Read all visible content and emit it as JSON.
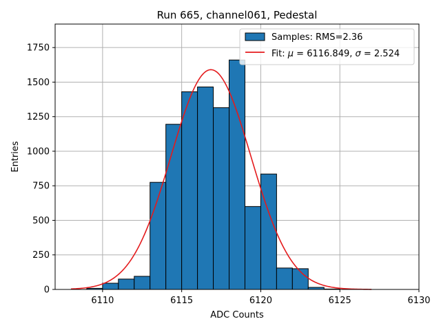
{
  "chart_data": {
    "type": "bar",
    "title": "Run 665, channel061, Pedestal",
    "xlabel": "ADC Counts",
    "ylabel": "Entries",
    "xlim": [
      6107,
      6130
    ],
    "ylim": [
      0,
      1920
    ],
    "xticks": [
      6110,
      6115,
      6120,
      6125,
      6130
    ],
    "yticks": [
      0,
      250,
      500,
      750,
      1000,
      1250,
      1500,
      1750
    ],
    "grid": true,
    "legend_position": "top-right",
    "colors": {
      "bar": "#1f77b4",
      "fit": "#e41a1c"
    },
    "histogram": {
      "name": "Samples: RMS=2.36",
      "bin_width": 1,
      "bins": [
        {
          "x0": 6109,
          "value": 8
        },
        {
          "x0": 6110,
          "value": 45
        },
        {
          "x0": 6111,
          "value": 75
        },
        {
          "x0": 6112,
          "value": 95
        },
        {
          "x0": 6113,
          "value": 775
        },
        {
          "x0": 6114,
          "value": 1195
        },
        {
          "x0": 6115,
          "value": 1430
        },
        {
          "x0": 6116,
          "value": 1465
        },
        {
          "x0": 6117,
          "value": 1315
        },
        {
          "x0": 6118,
          "value": 1660
        },
        {
          "x0": 6119,
          "value": 600
        },
        {
          "x0": 6120,
          "value": 835
        },
        {
          "x0": 6121,
          "value": 155
        },
        {
          "x0": 6122,
          "value": 150
        },
        {
          "x0": 6123,
          "value": 15
        },
        {
          "x0": 6124,
          "value": 3
        }
      ]
    },
    "fit": {
      "legend": "Fit: μ = 6116.849, σ = 2.524",
      "legend_prefix": "Fit: ",
      "legend_mid": " = 6116.849, ",
      "legend_suffix": " = 2.524",
      "mu": 6116.849,
      "sigma": 2.524,
      "amplitude": 1590,
      "x_range": [
        6108,
        6127
      ]
    }
  }
}
